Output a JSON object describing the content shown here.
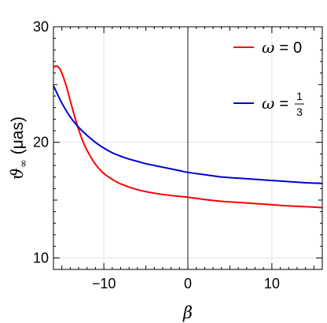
{
  "chart_data": {
    "type": "line",
    "xlabel": "β",
    "ylabel_symbol": "ϑ",
    "ylabel_subscript": "∞",
    "ylabel_unit": "(μas)",
    "xlim": [
      -16,
      16
    ],
    "ylim": [
      9,
      30
    ],
    "xticks": [
      -10,
      0,
      10
    ],
    "xtick_labels": [
      "−10",
      "0",
      "10"
    ],
    "yticks": [
      10,
      20,
      30
    ],
    "ytick_labels": [
      "10",
      "20",
      "30"
    ],
    "grid": true,
    "legend_position": "top-right",
    "series": [
      {
        "name": "ω = 0",
        "legend_lhs": "ω",
        "legend_rhs": "0",
        "color": "#ff0000",
        "x": [
          -16,
          -15.6,
          -15.2,
          -14.8,
          -14.4,
          -14,
          -13.5,
          -13,
          -12.5,
          -12,
          -11,
          -10,
          -9,
          -8,
          -6,
          -4,
          -2,
          0,
          2,
          4,
          6,
          8,
          10,
          12,
          14,
          16
        ],
        "y": [
          26.5,
          26.6,
          26.3,
          25.6,
          24.7,
          23.6,
          22.3,
          21.1,
          20.1,
          19.3,
          18.1,
          17.3,
          16.8,
          16.4,
          15.9,
          15.6,
          15.4,
          15.25,
          15.05,
          14.9,
          14.8,
          14.7,
          14.6,
          14.5,
          14.43,
          14.35
        ]
      },
      {
        "name": "ω = 1/3",
        "legend_lhs": "ω",
        "legend_num": "1",
        "legend_den": "3",
        "color": "#0000cc",
        "x": [
          -16,
          -15,
          -14,
          -13,
          -12,
          -11,
          -10,
          -9,
          -8,
          -7,
          -6,
          -5,
          -4,
          -3,
          -2,
          -1,
          0,
          2,
          4,
          6,
          8,
          10,
          12,
          14,
          16
        ],
        "y": [
          24.9,
          23.4,
          22.2,
          21.3,
          20.6,
          20.0,
          19.5,
          19.1,
          18.8,
          18.55,
          18.35,
          18.15,
          18.0,
          17.85,
          17.7,
          17.55,
          17.4,
          17.2,
          17.0,
          16.9,
          16.8,
          16.7,
          16.6,
          16.5,
          16.45
        ]
      }
    ]
  }
}
